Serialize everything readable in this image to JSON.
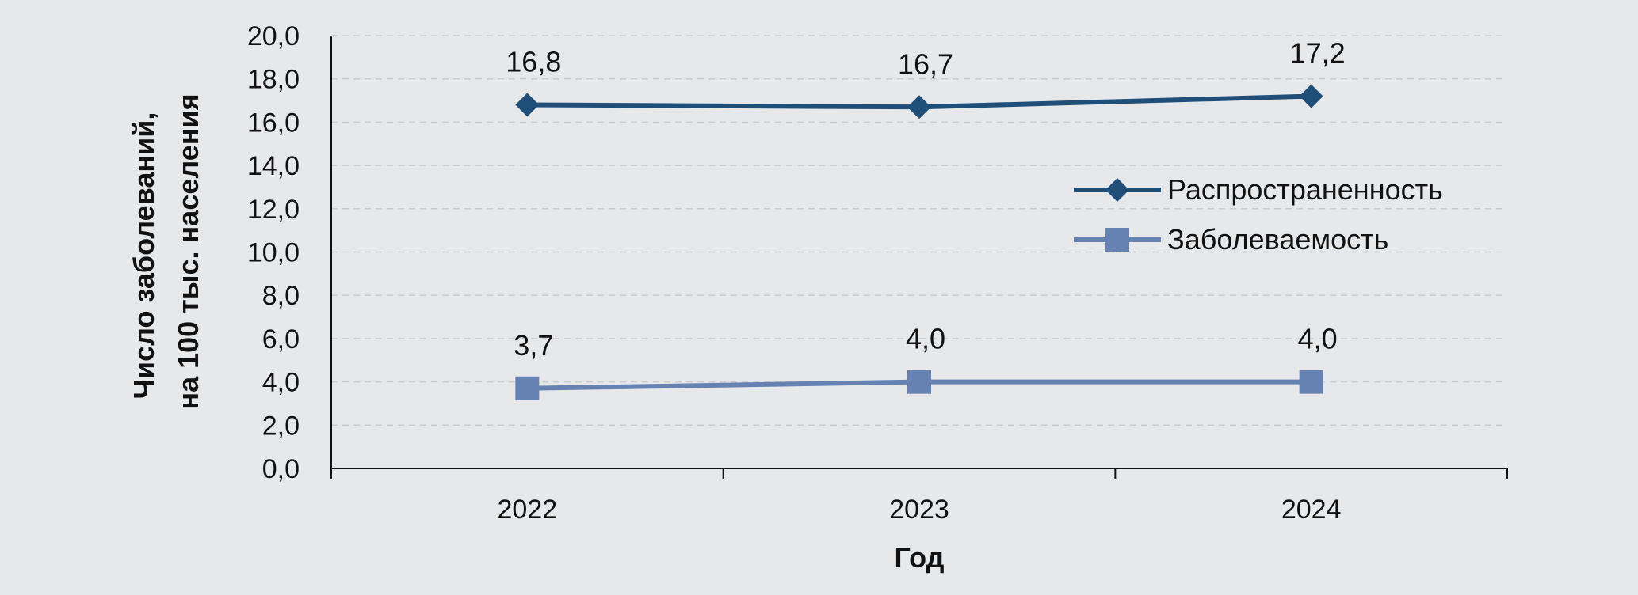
{
  "chart_data": {
    "type": "line",
    "categories": [
      "2022",
      "2023",
      "2024"
    ],
    "series": [
      {
        "name": "Распространенность",
        "values": [
          16.8,
          16.7,
          17.2
        ],
        "labels": [
          "16,8",
          "16,7",
          "17,2"
        ],
        "color": "#1f4e79",
        "marker": "diamond"
      },
      {
        "name": "Заболеваемость",
        "values": [
          3.7,
          4.0,
          4.0
        ],
        "labels": [
          "3,7",
          "4,0",
          "4,0"
        ],
        "color": "#6682b3",
        "marker": "square"
      }
    ],
    "xlabel": "Год",
    "ylabel_lines": [
      "Число заболеваний,",
      "на 100 тыс. населения"
    ],
    "ylim": [
      0,
      20
    ],
    "ystep": 2,
    "ytick_labels": [
      "0,0",
      "2,0",
      "4,0",
      "6,0",
      "8,0",
      "10,0",
      "12,0",
      "14,0",
      "16,0",
      "18,0",
      "20,0"
    ],
    "grid": "horizontal-dashed",
    "legend_position": "right-middle"
  }
}
